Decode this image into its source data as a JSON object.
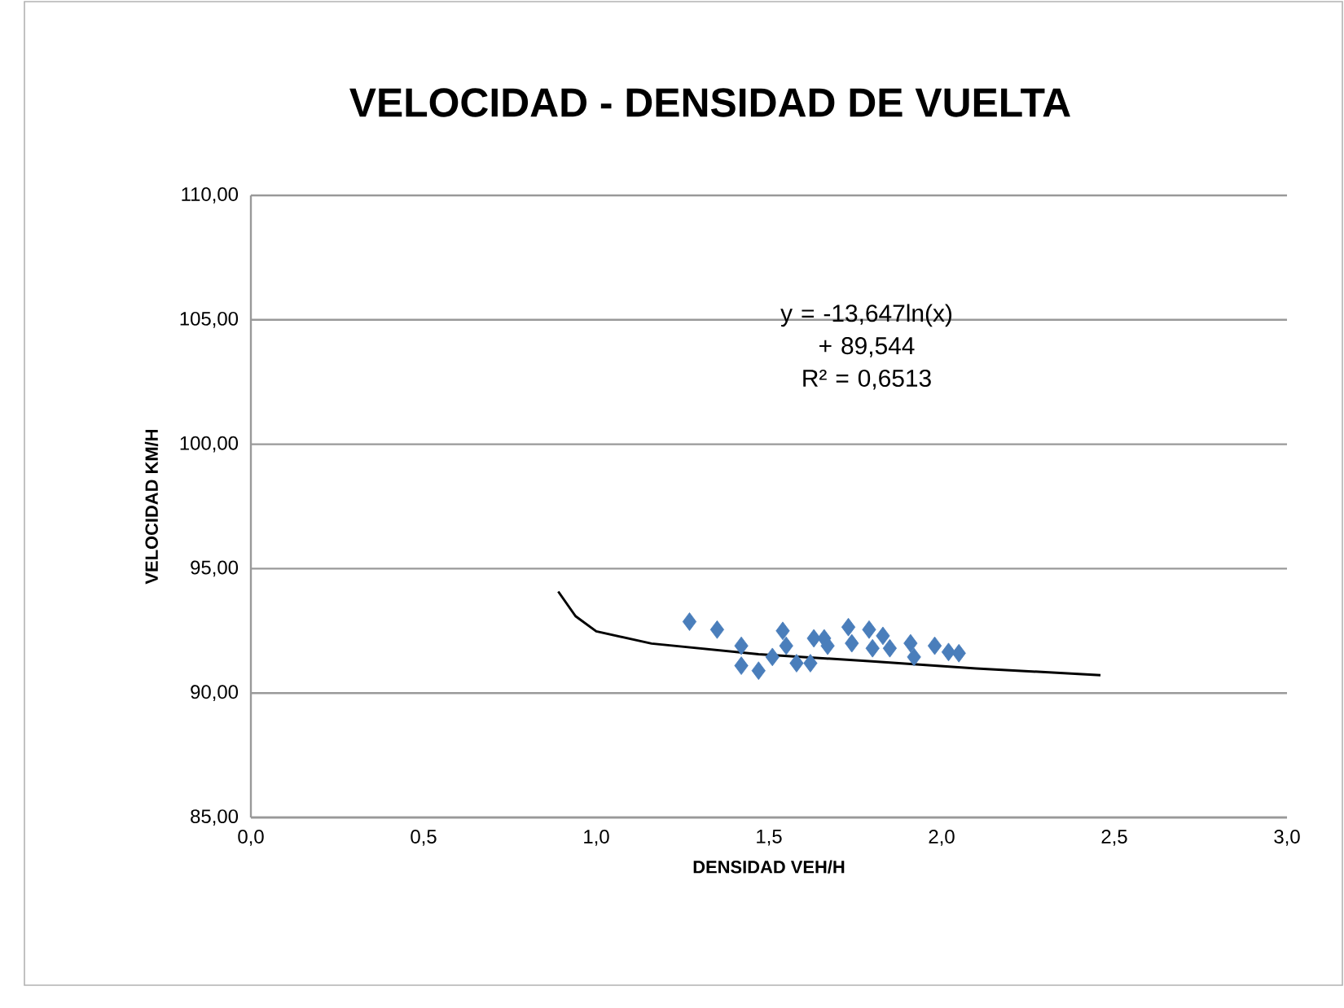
{
  "chart_data": {
    "type": "scatter",
    "title": "VELOCIDAD - DENSIDAD DE VUELTA",
    "xlabel": "DENSIDAD VEH/H",
    "ylabel": "VELOCIDAD KM/H",
    "xlim": [
      0,
      3
    ],
    "ylim": [
      85,
      110
    ],
    "xticks": [
      {
        "value": 0,
        "label": "0,0"
      },
      {
        "value": 0.5,
        "label": "0,5"
      },
      {
        "value": 1,
        "label": "1,0"
      },
      {
        "value": 1.5,
        "label": "1,5"
      },
      {
        "value": 2,
        "label": "2,0"
      },
      {
        "value": 2.5,
        "label": "2,5"
      },
      {
        "value": 3,
        "label": "3,0"
      }
    ],
    "yticks": [
      {
        "value": 85,
        "label": "85,00"
      },
      {
        "value": 90,
        "label": "90,00"
      },
      {
        "value": 95,
        "label": "95,00"
      },
      {
        "value": 100,
        "label": "100,00"
      },
      {
        "value": 105,
        "label": "105,00"
      },
      {
        "value": 110,
        "label": "110,00"
      }
    ],
    "grid": "y",
    "marker": "diamond",
    "annotations": [
      "y = -13,647ln(x) + 89,544",
      "R² = 0,6513"
    ],
    "series": [
      {
        "color": "#4a7ebb",
        "x": [
          1.27,
          1.35,
          1.42,
          1.42,
          1.47,
          1.51,
          1.54,
          1.55,
          1.58,
          1.62,
          1.63,
          1.66,
          1.67,
          1.73,
          1.74,
          1.79,
          1.8,
          1.83,
          1.85,
          1.91,
          1.92,
          1.98,
          2.02,
          2.05
        ],
        "values": [
          92.87,
          92.55,
          91.9,
          91.1,
          90.9,
          91.45,
          92.5,
          91.9,
          91.2,
          91.2,
          92.2,
          92.2,
          91.9,
          92.65,
          92.0,
          92.55,
          91.8,
          92.3,
          91.8,
          92.0,
          91.45,
          91.9,
          91.65,
          91.6
        ]
      },
      {
        "type": "line",
        "color": "#000000",
        "marker": "none",
        "x": [
          0.89,
          0.94,
          1.0,
          1.16,
          1.47,
          1.79,
          2.1,
          2.46
        ],
        "values": [
          94.08,
          93.09,
          92.48,
          91.99,
          91.56,
          91.28,
          90.99,
          90.72
        ]
      }
    ]
  }
}
